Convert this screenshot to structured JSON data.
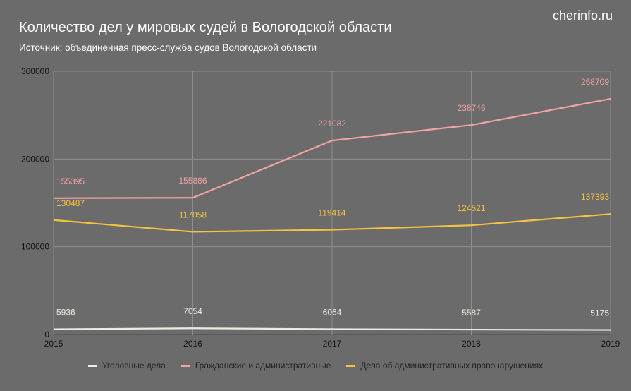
{
  "title": "Количество дел у мировых судей в Вологодской области",
  "subtitle": "Источник: объединенная пресс-служба судов Вологодской области",
  "brand": "cherinfo.ru",
  "chart_data": {
    "type": "line",
    "x": [
      "2015",
      "2016",
      "2017",
      "2018",
      "2019"
    ],
    "y_ticks": [
      "0",
      "100000",
      "200000",
      "300000"
    ],
    "ylim": [
      0,
      300000
    ],
    "grid": true,
    "legend_position": "bottom",
    "series": [
      {
        "name": "Уголовные дела",
        "color": "#e8eee2",
        "values": [
          5936,
          7054,
          6064,
          5587,
          5175
        ],
        "labels": [
          "5936",
          "7054",
          "6064",
          "5587",
          "5175"
        ]
      },
      {
        "name": "Гражданские и административные",
        "color": "#f2a3a3",
        "values": [
          155395,
          155886,
          221082,
          238746,
          268709
        ],
        "labels": [
          "155395",
          "155886",
          "221082",
          "238746",
          "268709"
        ]
      },
      {
        "name": "Дела об административных правонарушениях",
        "color": "#f5c242",
        "values": [
          130487,
          117058,
          119414,
          124521,
          137393
        ],
        "labels": [
          "130487",
          "117058",
          "119414",
          "124521",
          "137393"
        ]
      }
    ]
  }
}
